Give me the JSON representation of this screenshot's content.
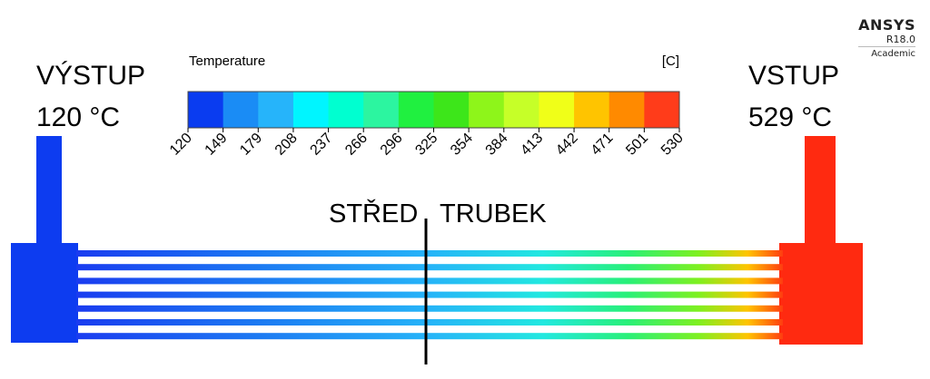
{
  "labels": {
    "outlet_name": "VÝSTUP",
    "outlet_temp": "120 °C",
    "inlet_name": "VSTUP",
    "inlet_temp": "529 °C",
    "center_left": "STŘED",
    "center_right": "TRUBEK"
  },
  "ansys": {
    "brand": "ANSYS",
    "version": "R18.0",
    "edition": "Academic"
  },
  "legend": {
    "title": "Temperature",
    "unit": "[C]",
    "ticks": [
      "120",
      "149",
      "179",
      "208",
      "237",
      "266",
      "296",
      "325",
      "354",
      "384",
      "413",
      "442",
      "471",
      "501",
      "530"
    ],
    "colors": [
      "#0a3cf0",
      "#1a8cf5",
      "#26b4fa",
      "#00f5ff",
      "#00ffd0",
      "#2cf5a0",
      "#20f040",
      "#3de61a",
      "#8ef51a",
      "#c6ff28",
      "#f0ff18",
      "#ffc400",
      "#ff8a00",
      "#ff3c1a"
    ]
  },
  "colors": {
    "outlet_header": "#0d3cf0",
    "inlet_header": "#ff2a10",
    "divider": "#000000"
  },
  "tubes": {
    "count": 7
  }
}
